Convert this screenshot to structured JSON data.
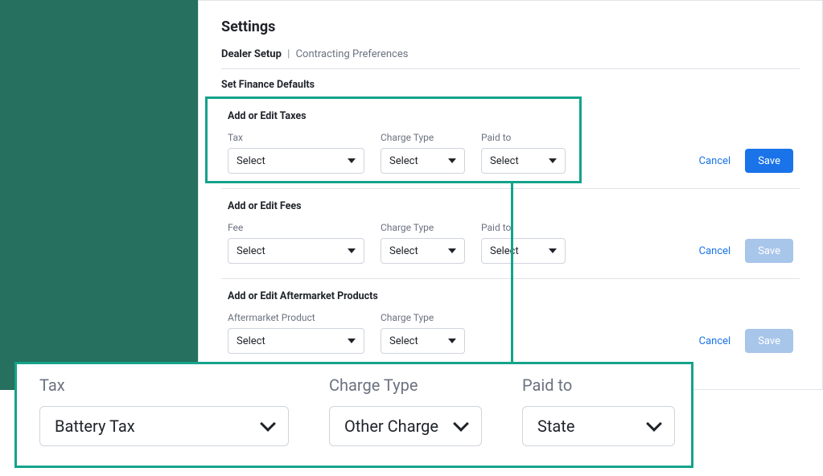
{
  "page": {
    "title": "Settings"
  },
  "breadcrumb": {
    "level1": "Dealer Setup",
    "level2": "Contracting Preferences"
  },
  "finance_defaults_label": "Set Finance Defaults",
  "taxes": {
    "title": "Add or Edit Taxes",
    "fields": {
      "tax": {
        "label": "Tax",
        "value": "Select"
      },
      "chargeType": {
        "label": "Charge Type",
        "value": "Select"
      },
      "paidTo": {
        "label": "Paid to",
        "value": "Select"
      }
    },
    "actions": {
      "cancel": "Cancel",
      "save": "Save",
      "save_disabled": false
    }
  },
  "fees": {
    "title": "Add or Edit Fees",
    "fields": {
      "fee": {
        "label": "Fee",
        "value": "Select"
      },
      "chargeType": {
        "label": "Charge Type",
        "value": "Select"
      },
      "paidTo": {
        "label": "Paid to",
        "value": "Select"
      }
    },
    "actions": {
      "cancel": "Cancel",
      "save": "Save",
      "save_disabled": true
    }
  },
  "aftermarket": {
    "title": "Add or Edit Aftermarket Products",
    "fields": {
      "product": {
        "label": "Aftermarket Product",
        "value": "Select"
      },
      "chargeType": {
        "label": "Charge Type",
        "value": "Select"
      }
    },
    "actions": {
      "cancel": "Cancel",
      "save": "Save",
      "save_disabled": true
    }
  },
  "callout": {
    "tax": {
      "label": "Tax",
      "value": "Battery Tax"
    },
    "chargeType": {
      "label": "Charge Type",
      "value": "Other Charge"
    },
    "paidTo": {
      "label": "Paid to",
      "value": "State"
    }
  },
  "colors": {
    "teal": "#14a38b",
    "dark_teal_stripe": "#25705e",
    "primary_blue": "#1a73e8",
    "disabled_blue": "#a8c5ea",
    "border": "#cfd4dc",
    "text": "#1f2329",
    "muted": "#6b7280"
  }
}
